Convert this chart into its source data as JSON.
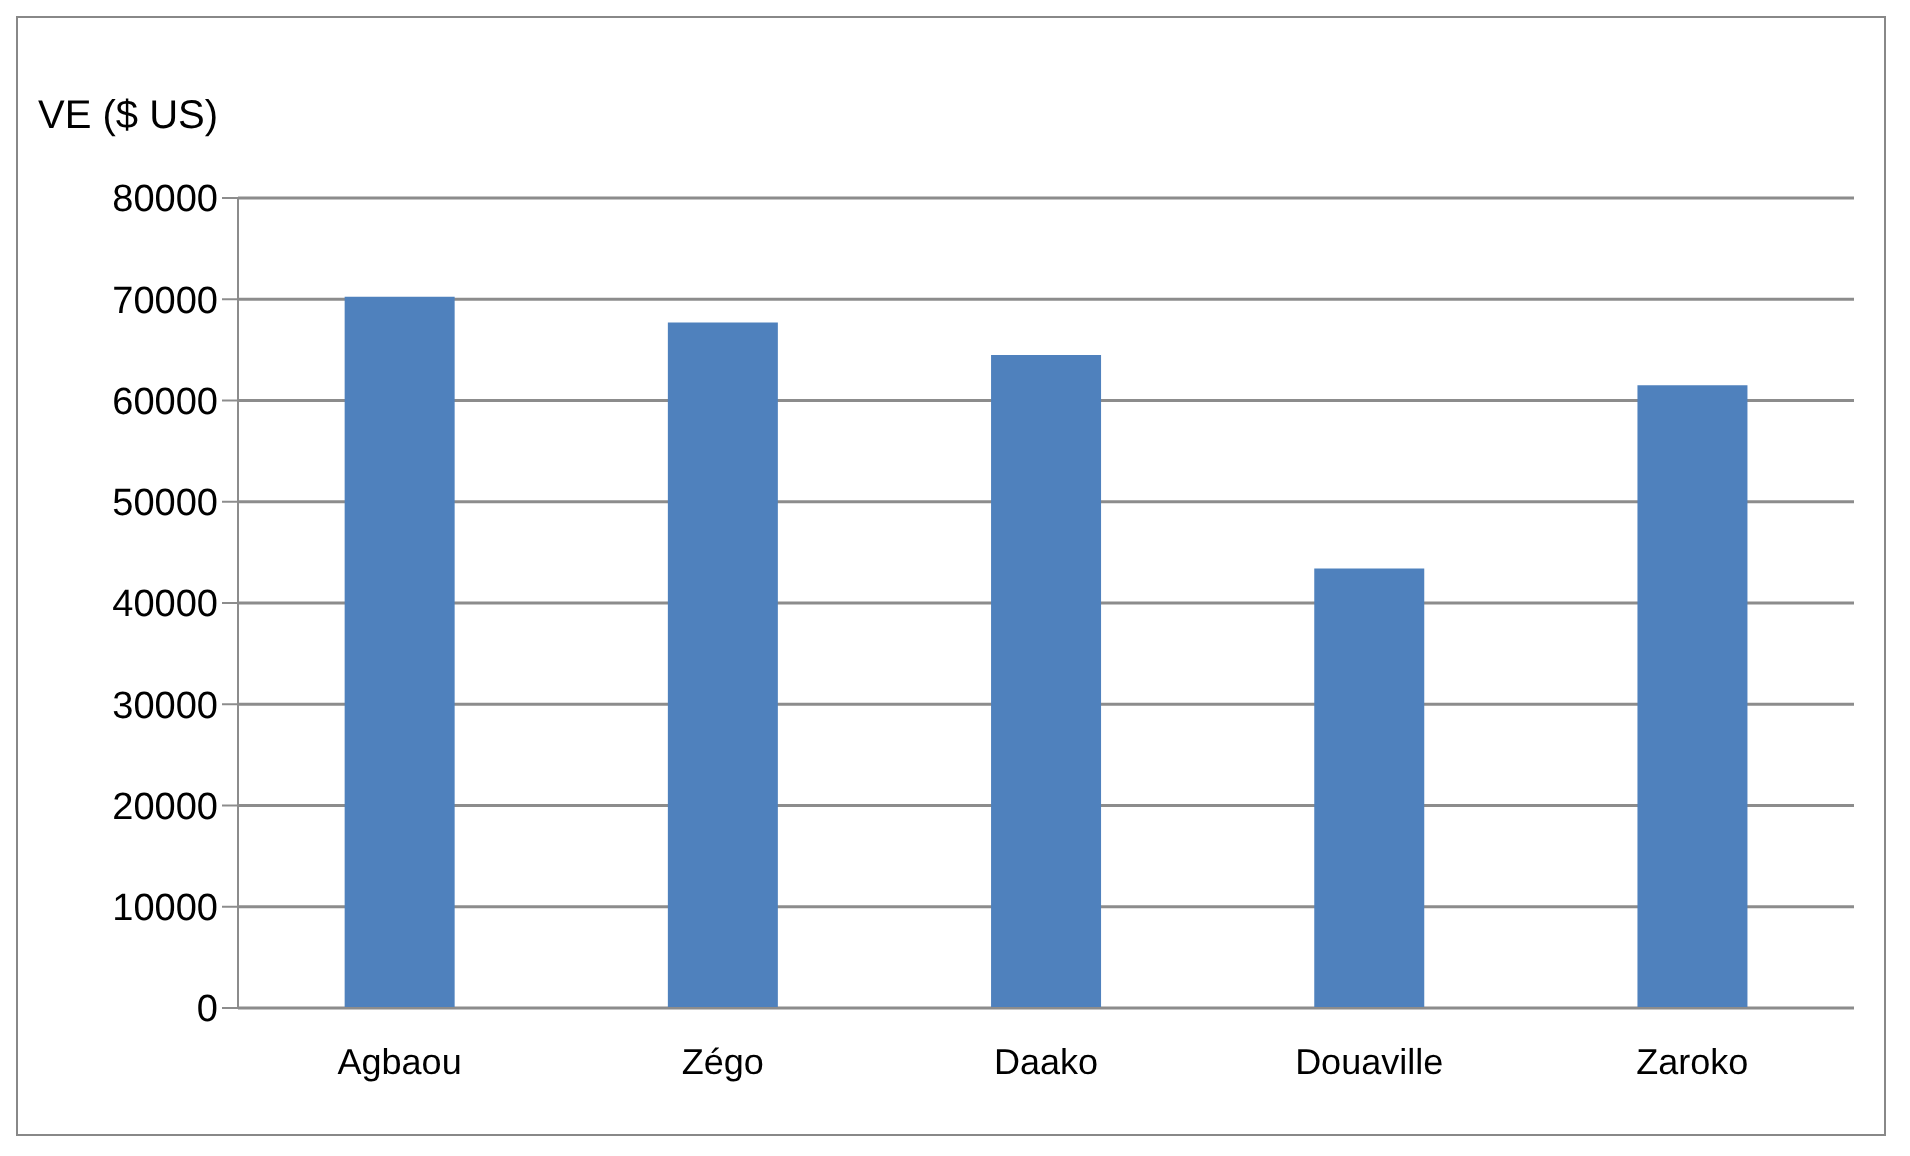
{
  "chart_data": {
    "type": "bar",
    "ylabel": "VE ($ US)",
    "categories": [
      "Agbaou",
      "Zégo",
      "Daako",
      "Douaville",
      "Zaroko"
    ],
    "values": [
      70250,
      67700,
      64500,
      43400,
      61500
    ],
    "color": "#4f81bd",
    "ylim": [
      0,
      80000
    ],
    "yticks": [
      0,
      10000,
      20000,
      30000,
      40000,
      50000,
      60000,
      70000,
      80000
    ],
    "grid": "y"
  }
}
